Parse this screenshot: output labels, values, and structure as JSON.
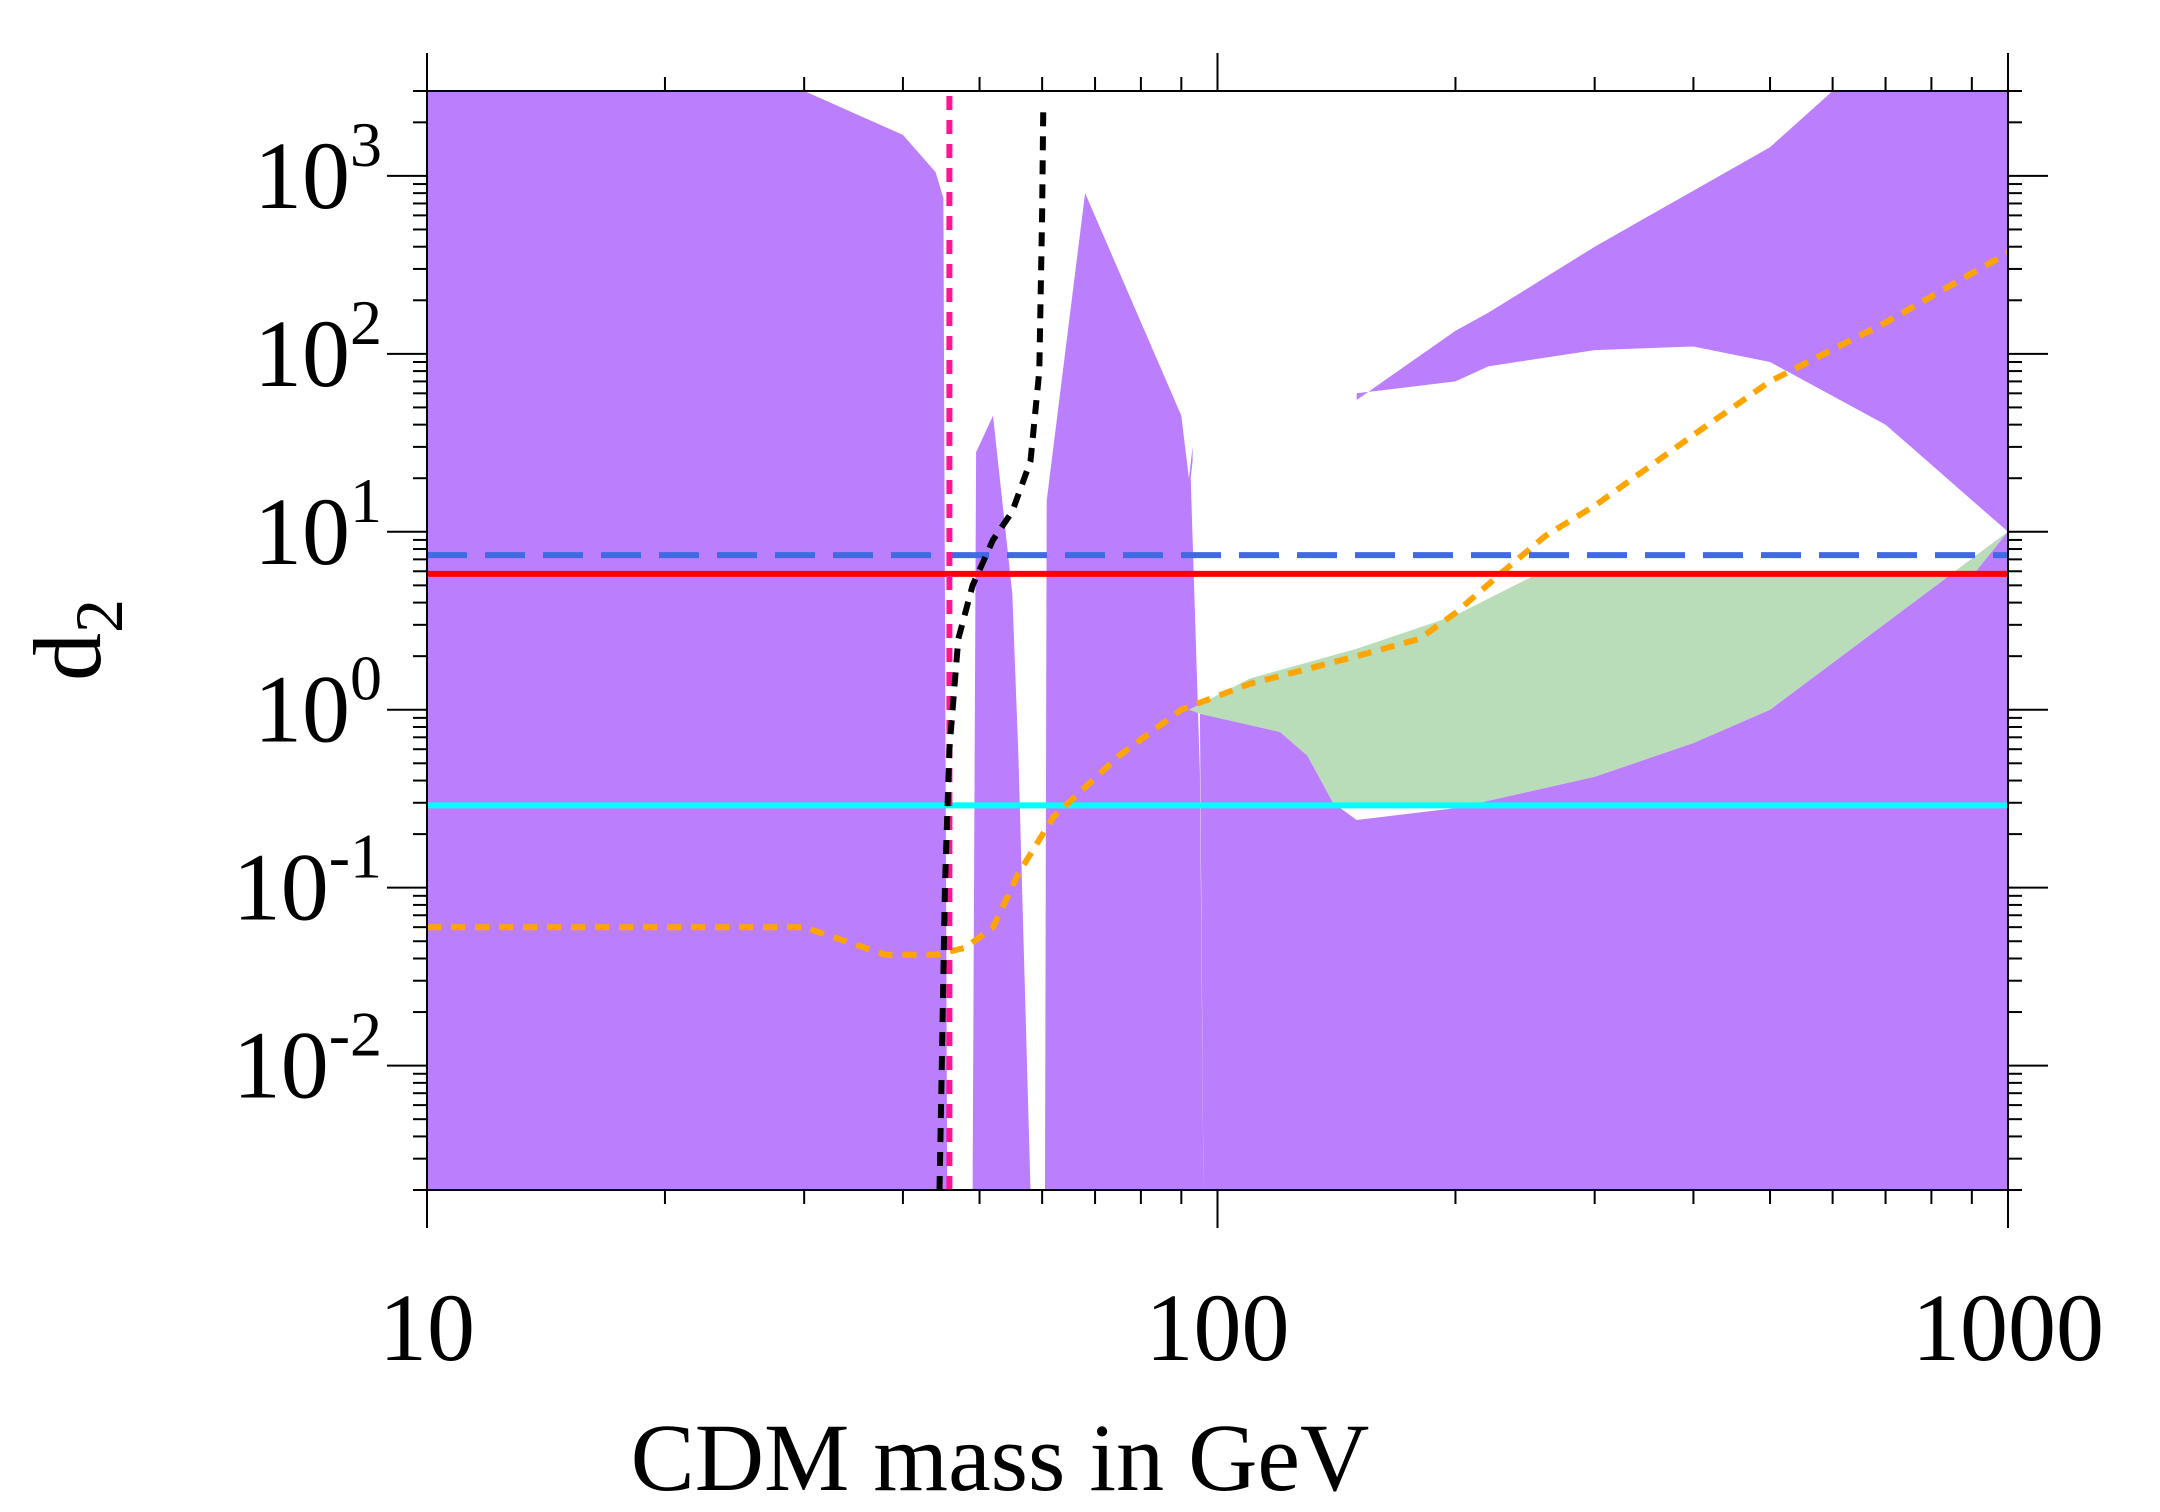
{
  "chart_data": {
    "type": "line",
    "title": "",
    "xlabel": "CDM mass in GeV",
    "ylabel_main": "d",
    "ylabel_sub": "2",
    "xscale": "log",
    "yscale": "log",
    "xlim": [
      10,
      1000
    ],
    "ylim": [
      0.002,
      3000
    ],
    "grid": false,
    "legend": "none",
    "x_tick_labels": [
      {
        "value": 10,
        "label": "10"
      },
      {
        "value": 100,
        "label": "100"
      },
      {
        "value": 1000,
        "label": "1000"
      }
    ],
    "y_tick_labels": [
      {
        "value": 0.01,
        "base": "10",
        "exp": "-2"
      },
      {
        "value": 0.1,
        "base": "10",
        "exp": "-1"
      },
      {
        "value": 1,
        "base": "10",
        "exp": "0"
      },
      {
        "value": 10,
        "base": "10",
        "exp": "1"
      },
      {
        "value": 100,
        "base": "10",
        "exp": "2"
      },
      {
        "value": 1000,
        "base": "10",
        "exp": "3"
      }
    ],
    "regions": [
      {
        "name": "excluded-region",
        "color": "#bb7ffd",
        "polygons": [
          [
            [
              10,
              0.002
            ],
            [
              10,
              3000
            ],
            [
              30,
              3000
            ],
            [
              40,
              1700
            ],
            [
              44,
              1050
            ],
            [
              45,
              750
            ],
            [
              45.5,
              0.002
            ]
          ],
          [
            [
              49,
              0.002
            ],
            [
              49.5,
              28
            ],
            [
              52,
              45
            ],
            [
              55,
              4.5
            ],
            [
              56,
              0.55
            ],
            [
              58,
              0.002
            ]
          ],
          [
            [
              60.5,
              0.002
            ],
            [
              60.8,
              15
            ],
            [
              68,
              800
            ],
            [
              90,
              45
            ],
            [
              92,
              20
            ],
            [
              93,
              30
            ],
            [
              93,
              25
            ],
            [
              92.5,
              20
            ],
            [
              95,
              0.45
            ],
            [
              96,
              0.002
            ]
          ],
          [
            [
              96,
              0.002
            ],
            [
              95,
              0.95
            ],
            [
              120,
              0.75
            ],
            [
              130,
              0.55
            ],
            [
              140,
              0.3
            ],
            [
              150,
              0.24
            ],
            [
              200,
              0.28
            ],
            [
              300,
              0.42
            ],
            [
              400,
              0.65
            ],
            [
              500,
              1.0
            ],
            [
              1000,
              10.0
            ],
            [
              1000,
              0.002
            ]
          ],
          [
            [
              150,
              55
            ],
            [
              200,
              135
            ],
            [
              220,
              170
            ],
            [
              300,
              400
            ],
            [
              500,
              1450
            ],
            [
              600,
              3000
            ],
            [
              1000,
              3000
            ],
            [
              1000,
              10
            ],
            [
              700,
              40
            ],
            [
              500,
              90
            ],
            [
              400,
              110
            ],
            [
              300,
              105
            ],
            [
              220,
              85
            ],
            [
              200,
              70
            ],
            [
              150,
              60
            ]
          ]
        ]
      },
      {
        "name": "allowed-region",
        "color": "#b9dcb9",
        "polygons": [
          [
            [
              92,
              1.0
            ],
            [
              110,
              1.5
            ],
            [
              150,
              2.2
            ],
            [
              200,
              3.4
            ],
            [
              250,
              5.6
            ],
            [
              900,
              5.6
            ],
            [
              1000,
              10.0
            ],
            [
              500,
              1.0
            ],
            [
              400,
              0.65
            ],
            [
              300,
              0.42
            ],
            [
              200,
              0.28
            ],
            [
              140,
              0.3
            ],
            [
              130,
              0.55
            ],
            [
              120,
              0.75
            ],
            [
              95,
              0.95
            ]
          ]
        ]
      }
    ],
    "series": [
      {
        "name": "red-solid",
        "color": "#ff0000",
        "style": "solid",
        "x": [
          10,
          1000
        ],
        "y": [
          5.8,
          5.8
        ]
      },
      {
        "name": "blue-dashed",
        "color": "#4169e1",
        "style": "dashed",
        "x": [
          10,
          1000
        ],
        "y": [
          7.4,
          7.4
        ]
      },
      {
        "name": "cyan-solid",
        "color": "#00ffff",
        "style": "solid",
        "x": [
          10,
          1000
        ],
        "y": [
          0.29,
          0.29
        ]
      },
      {
        "name": "magenta-dotted",
        "color": "#ff1493",
        "style": "dotted",
        "x": [
          45.8,
          45.8
        ],
        "y": [
          0.002,
          3000
        ]
      },
      {
        "name": "black-dotted",
        "color": "#000000",
        "style": "dotted",
        "x": [
          44.5,
          44.8,
          45.2,
          45.8,
          47,
          49,
          52,
          55,
          58,
          59.5,
          60,
          60.2
        ],
        "y": [
          0.002,
          0.01,
          0.1,
          0.6,
          2.5,
          5,
          9,
          13,
          25,
          80,
          600,
          2500
        ]
      },
      {
        "name": "orange-dotted",
        "color": "#ffa500",
        "style": "dotted",
        "x": [
          10,
          30,
          38,
          44,
          48,
          52,
          56,
          62,
          75,
          90,
          110,
          150,
          180,
          200,
          230,
          260,
          300,
          400,
          500,
          700,
          1000
        ],
        "y": [
          0.06,
          0.06,
          0.042,
          0.042,
          0.046,
          0.06,
          0.12,
          0.25,
          0.55,
          1.0,
          1.4,
          2.0,
          2.5,
          3.5,
          6.0,
          9.5,
          14,
          35,
          70,
          150,
          370
        ]
      }
    ]
  }
}
